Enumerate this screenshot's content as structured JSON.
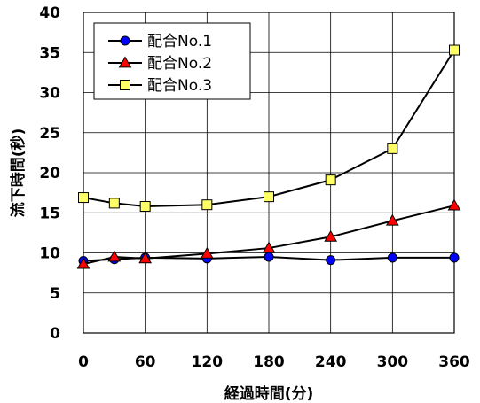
{
  "chart_data": {
    "type": "line",
    "xlabel": "経過時間(分)",
    "ylabel": "流下時間(秒)",
    "x": [
      0,
      30,
      60,
      120,
      180,
      240,
      300,
      360
    ],
    "x_ticks": [
      0,
      60,
      120,
      180,
      240,
      300,
      360
    ],
    "xlim": [
      0,
      360
    ],
    "y_ticks": [
      0,
      5,
      10,
      15,
      20,
      25,
      30,
      35,
      40
    ],
    "ylim": [
      0,
      40
    ],
    "grid": true,
    "legend_position": "top-left",
    "series": [
      {
        "name": "配合No.1",
        "marker": "circle",
        "color": "#0000ff",
        "values": [
          9.0,
          9.2,
          9.4,
          9.3,
          9.5,
          9.1,
          9.4,
          9.4
        ]
      },
      {
        "name": "配合No.2",
        "marker": "triangle",
        "color": "#ff0000",
        "values": [
          8.6,
          9.5,
          9.3,
          9.9,
          10.6,
          12.0,
          14.0,
          15.9
        ]
      },
      {
        "name": "配合No.3",
        "marker": "square",
        "color": "#ffff66",
        "values": [
          16.9,
          16.2,
          15.8,
          16.0,
          17.0,
          19.1,
          23.0,
          35.3
        ]
      }
    ]
  }
}
